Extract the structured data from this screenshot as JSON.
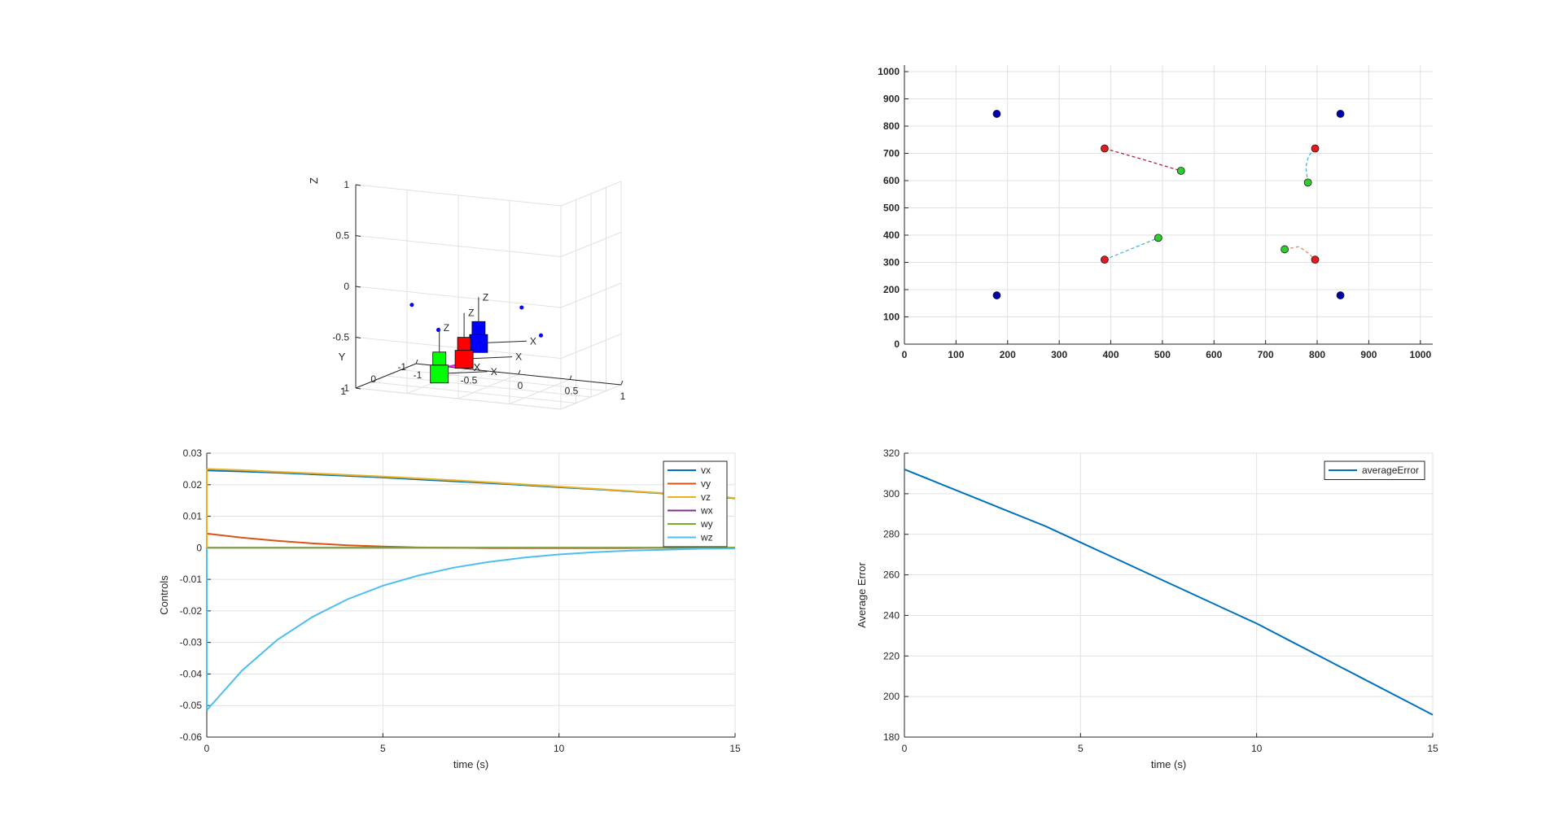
{
  "chart_data": [
    {
      "type": "scatter3d",
      "xlabel": "X",
      "ylabel": "Y",
      "zlabel": "Z",
      "xlim": [
        -1,
        1
      ],
      "ylim": [
        -1,
        1
      ],
      "zlim": [
        -1,
        1
      ],
      "xticks": [
        "-1",
        "-0.5",
        "0",
        "0.5",
        "1"
      ],
      "yticks": [
        "-1",
        "0",
        "1"
      ],
      "zticks": [
        "-1",
        "-0.5",
        "0",
        "0.5",
        "1"
      ],
      "grid": true,
      "points": [
        [
          -0.6,
          0.5,
          -0.2
        ],
        [
          -0.4,
          0.3,
          -0.45
        ],
        [
          0.5,
          0.6,
          -0.1
        ],
        [
          0.6,
          0.3,
          -0.4
        ]
      ],
      "point_color": "#0000ff",
      "cameras": [
        {
          "color": "#0000ff",
          "axis_labels": [
            "X",
            "Z"
          ],
          "pos": [
            0.0,
            0.3,
            -0.55
          ]
        },
        {
          "color": "#ff0000",
          "axis_labels": [
            "X",
            "Z"
          ],
          "pos": [
            -0.2,
            0.1,
            -0.75
          ]
        },
        {
          "color": "#00ff00",
          "axis_labels": [
            "X",
            "Z"
          ],
          "pos": [
            -0.5,
            -0.1,
            -0.95
          ]
        }
      ]
    },
    {
      "type": "scatter",
      "xlim": [
        0,
        1024
      ],
      "ylim": [
        0,
        1024
      ],
      "xticks": [
        0,
        100,
        200,
        300,
        400,
        500,
        600,
        700,
        800,
        900,
        1000
      ],
      "yticks": [
        0,
        100,
        200,
        300,
        400,
        500,
        600,
        700,
        800,
        900,
        1000
      ],
      "grid": true,
      "series": [
        {
          "marker": "blue",
          "color": "#0000b4",
          "points": [
            [
              179,
              845
            ],
            [
              845,
              845
            ],
            [
              179,
              179
            ],
            [
              845,
              179
            ]
          ]
        },
        {
          "marker": "red",
          "color": "#e6191e",
          "points": [
            [
              388,
              718
            ],
            [
              796,
              718
            ],
            [
              388,
              310
            ],
            [
              796,
              310
            ]
          ]
        },
        {
          "marker": "green",
          "color": "#28d228",
          "points": [
            [
              536,
              636
            ],
            [
              782,
              593
            ],
            [
              492,
              390
            ],
            [
              737,
              348
            ]
          ]
        }
      ],
      "trails": [
        {
          "color": "#a02840",
          "points": [
            [
              388,
              718
            ],
            [
              462,
              678
            ],
            [
              536,
              636
            ]
          ]
        },
        {
          "color": "#46b4dc",
          "points": [
            [
              796,
              718
            ],
            [
              783,
              690
            ],
            [
              778,
              650
            ],
            [
              782,
              593
            ]
          ]
        },
        {
          "color": "#46b4dc",
          "points": [
            [
              388,
              310
            ],
            [
              440,
              350
            ],
            [
              492,
              390
            ]
          ]
        },
        {
          "color": "#e08a6a",
          "points": [
            [
              737,
              348
            ],
            [
              765,
              358
            ],
            [
              782,
              335
            ],
            [
              796,
              310
            ]
          ]
        }
      ]
    },
    {
      "type": "line",
      "xlabel": "time (s)",
      "ylabel": "Controls",
      "xlim": [
        0,
        15
      ],
      "ylim": [
        -0.06,
        0.03
      ],
      "xticks": [
        "0",
        "5",
        "10",
        "15"
      ],
      "yticks": [
        "-0.06",
        "-0.05",
        "-0.04",
        "-0.03",
        "-0.02",
        "-0.01",
        "0",
        "0.01",
        "0.02",
        "0.03"
      ],
      "grid": true,
      "legend": "top-right",
      "x": [
        0,
        1,
        2,
        3,
        4,
        5,
        6,
        7,
        8,
        9,
        10,
        11,
        12,
        13,
        14,
        15
      ],
      "series": [
        {
          "name": "vx",
          "color": "#0072bd",
          "values": [
            0.0245,
            0.0242,
            0.0238,
            0.0233,
            0.0228,
            0.0223,
            0.0217,
            0.0211,
            0.0205,
            0.0199,
            0.0192,
            0.0186,
            0.0179,
            0.0172,
            0.0165,
            0.0157
          ]
        },
        {
          "name": "vy",
          "color": "#d95319",
          "values": [
            0.0045,
            0.0032,
            0.0022,
            0.0014,
            0.0008,
            0.0004,
            0.0001,
            0.0,
            -0.0001,
            -0.0001,
            -0.0001,
            -0.0001,
            -0.0001,
            0.0,
            0.0,
            0.0
          ]
        },
        {
          "name": "vz",
          "color": "#edb120",
          "values": [
            0.025,
            0.0246,
            0.0241,
            0.0236,
            0.0231,
            0.0226,
            0.022,
            0.0214,
            0.0208,
            0.0201,
            0.0194,
            0.0187,
            0.018,
            0.0173,
            0.0166,
            0.0158
          ]
        },
        {
          "name": "wx",
          "color": "#7e2f8e",
          "values": [
            0,
            0,
            0,
            0,
            0,
            0,
            0,
            0,
            0,
            0,
            0,
            0,
            0,
            0,
            0,
            0
          ]
        },
        {
          "name": "wy",
          "color": "#77ac30",
          "values": [
            0,
            0,
            0,
            0,
            0,
            0,
            0,
            0,
            0,
            0,
            0,
            0,
            0,
            0,
            0,
            0
          ]
        },
        {
          "name": "wz",
          "color": "#4dbeee",
          "values": [
            -0.0515,
            -0.0389,
            -0.0292,
            -0.0219,
            -0.0163,
            -0.012,
            -0.0088,
            -0.0063,
            -0.0045,
            -0.0031,
            -0.0021,
            -0.0014,
            -0.0009,
            -0.0006,
            -0.0003,
            -0.0002
          ]
        }
      ]
    },
    {
      "type": "line",
      "xlabel": "time (s)",
      "ylabel": "Average Error",
      "xlim": [
        0,
        15
      ],
      "ylim": [
        180,
        320
      ],
      "xticks": [
        "0",
        "5",
        "10",
        "15"
      ],
      "yticks": [
        "180",
        "200",
        "220",
        "240",
        "260",
        "280",
        "300",
        "320"
      ],
      "grid": true,
      "legend": "top-right",
      "x": [
        0,
        1,
        2,
        3,
        4,
        5,
        6,
        7,
        8,
        9,
        10,
        11,
        12,
        13,
        14,
        15
      ],
      "series": [
        {
          "name": "averageError",
          "color": "#0072bd",
          "values": [
            312,
            305,
            298,
            291,
            284,
            276,
            268,
            260,
            252,
            244,
            236,
            227,
            218,
            209,
            200,
            191
          ]
        }
      ]
    }
  ]
}
